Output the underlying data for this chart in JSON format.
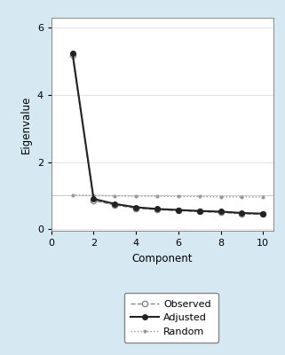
{
  "components": [
    1,
    2,
    3,
    4,
    5,
    6,
    7,
    8,
    9,
    10
  ],
  "observed": [
    5.18,
    0.85,
    0.72,
    0.62,
    0.58,
    0.55,
    0.52,
    0.5,
    0.46,
    0.44
  ],
  "adjusted": [
    5.25,
    0.9,
    0.75,
    0.65,
    0.6,
    0.57,
    0.54,
    0.52,
    0.48,
    0.46
  ],
  "random": [
    1.02,
    1.0,
    0.99,
    0.98,
    0.98,
    0.97,
    0.97,
    0.96,
    0.96,
    0.95
  ],
  "observed_color": "#888888",
  "adjusted_color": "#222222",
  "random_color": "#999999",
  "fig_bg_color": "#d6e8f2",
  "plot_bg_color": "#ffffff",
  "hline_y": 1.0,
  "hline_color": "#cccccc",
  "grid_color": "#dddddd",
  "xlim": [
    0,
    10.5
  ],
  "ylim": [
    -0.05,
    6.3
  ],
  "xticks": [
    0,
    2,
    4,
    6,
    8,
    10
  ],
  "yticks": [
    0,
    2,
    4,
    6
  ],
  "xlabel": "Component",
  "ylabel": "Eigenvalue"
}
